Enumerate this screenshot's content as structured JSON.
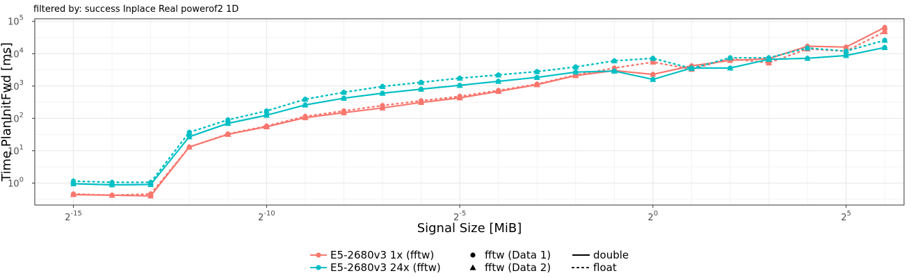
{
  "chart_data": {
    "type": "line",
    "subtitle": "filtered by: success Inplace Real powerof2 1D",
    "xlabel": "Signal Size [MiB]",
    "ylabel": "Time PlanInitFwd [ms]",
    "x_scale": "log2",
    "y_scale": "log10",
    "xlim_log2": [
      -16.0,
      6.5
    ],
    "ylim_log10": [
      -0.68,
      5.08
    ],
    "x_ticks": [
      {
        "base": "2",
        "exp": "-15",
        "log2": -15
      },
      {
        "base": "2",
        "exp": "-10",
        "log2": -10
      },
      {
        "base": "2",
        "exp": "-5",
        "log2": -5
      },
      {
        "base": "2",
        "exp": "0",
        "log2": 0
      },
      {
        "base": "2",
        "exp": "5",
        "log2": 5
      }
    ],
    "y_ticks": [
      {
        "base": "10",
        "exp": "0",
        "log10": 0
      },
      {
        "base": "10",
        "exp": "1",
        "log10": 1
      },
      {
        "base": "10",
        "exp": "2",
        "log10": 2
      },
      {
        "base": "10",
        "exp": "3",
        "log10": 3
      },
      {
        "base": "10",
        "exp": "4",
        "log10": 4
      },
      {
        "base": "10",
        "exp": "5",
        "log10": 5
      }
    ],
    "grid": true,
    "legend_position": "bottom",
    "x": [
      -15,
      -14,
      -13,
      -12,
      -11,
      -10,
      -9,
      -8,
      -7,
      -6,
      -5,
      -4,
      -3,
      -2,
      -1,
      0,
      1,
      2,
      3,
      4,
      5,
      6
    ],
    "series": [
      {
        "name": "E5-2680v3 1x (fftw)",
        "precision": "double",
        "data": "fftw (Data 1)",
        "color": "#F8766D",
        "dash": "solid",
        "marker": "circle",
        "values": [
          0.44,
          0.42,
          0.4,
          13,
          32,
          55,
          105,
          150,
          210,
          310,
          430,
          680,
          1100,
          2100,
          3000,
          2300,
          4200,
          6200,
          7000,
          17000,
          16000,
          65000
        ]
      },
      {
        "name": "E5-2680v3 1x (fftw)",
        "precision": "double",
        "data": "fftw (Data 2)",
        "color": "#F8766D",
        "dash": "solid",
        "marker": "triangle",
        "values": [
          0.44,
          0.42,
          0.4,
          13,
          32,
          55,
          105,
          150,
          210,
          310,
          430,
          680,
          1100,
          2100,
          3000,
          2300,
          4200,
          6200,
          7000,
          17000,
          16000,
          65000
        ]
      },
      {
        "name": "E5-2680v3 1x (fftw)",
        "precision": "float",
        "data": "fftw (Data 1)",
        "color": "#F8766D",
        "dash": "dotted",
        "marker": "circle",
        "values": [
          0.46,
          0.42,
          0.46,
          13,
          33,
          58,
          115,
          170,
          250,
          350,
          480,
          730,
          1150,
          2200,
          3600,
          5500,
          3300,
          7000,
          5200,
          14000,
          12000,
          48000
        ]
      },
      {
        "name": "E5-2680v3 1x (fftw)",
        "precision": "float",
        "data": "fftw (Data 2)",
        "color": "#F8766D",
        "dash": "dotted",
        "marker": "triangle",
        "values": [
          0.46,
          0.42,
          0.46,
          13,
          33,
          58,
          115,
          170,
          250,
          350,
          480,
          730,
          1150,
          2200,
          3600,
          5500,
          3300,
          7000,
          5200,
          14000,
          12000,
          48000
        ]
      },
      {
        "name": "E5-2680v3 24x (fftw)",
        "precision": "double",
        "data": "fftw (Data 1)",
        "color": "#00BFC4",
        "dash": "solid",
        "marker": "circle",
        "values": [
          0.95,
          0.88,
          0.9,
          27,
          70,
          125,
          260,
          420,
          600,
          800,
          1050,
          1400,
          1850,
          2700,
          2900,
          1600,
          3600,
          3600,
          6700,
          7200,
          8800,
          15500
        ]
      },
      {
        "name": "E5-2680v3 24x (fftw)",
        "precision": "double",
        "data": "fftw (Data 2)",
        "color": "#00BFC4",
        "dash": "solid",
        "marker": "triangle",
        "values": [
          0.95,
          0.88,
          0.9,
          27,
          70,
          125,
          260,
          420,
          600,
          800,
          1050,
          1400,
          1850,
          2700,
          2900,
          1600,
          3600,
          3600,
          6700,
          7200,
          8800,
          15500
        ]
      },
      {
        "name": "E5-2680v3 24x (fftw)",
        "precision": "float",
        "data": "fftw (Data 1)",
        "color": "#00BFC4",
        "dash": "dotted",
        "marker": "circle",
        "values": [
          1.15,
          1.05,
          1.05,
          37,
          90,
          170,
          390,
          640,
          970,
          1300,
          1750,
          2200,
          2800,
          3900,
          6000,
          7200,
          3500,
          7500,
          7500,
          15000,
          12000,
          26000
        ]
      },
      {
        "name": "E5-2680v3 24x (fftw)",
        "precision": "float",
        "data": "fftw (Data 2)",
        "color": "#00BFC4",
        "dash": "dotted",
        "marker": "triangle",
        "values": [
          1.15,
          1.05,
          1.05,
          37,
          90,
          170,
          390,
          640,
          970,
          1300,
          1750,
          2200,
          2800,
          3900,
          6000,
          7200,
          3500,
          7500,
          7500,
          15000,
          12000,
          26000
        ]
      }
    ],
    "legend": {
      "colour_entries": [
        {
          "label": "E5-2680v3 1x (fftw)",
          "color": "#F8766D"
        },
        {
          "label": "E5-2680v3 24x (fftw)",
          "color": "#00BFC4"
        }
      ],
      "shape_entries": [
        {
          "label": "fftw (Data 1)",
          "marker": "circle"
        },
        {
          "label": "fftw (Data 2)",
          "marker": "triangle"
        }
      ],
      "linetype_entries": [
        {
          "label": "double",
          "dash": "solid"
        },
        {
          "label": "float",
          "dash": "dotted"
        }
      ]
    }
  }
}
